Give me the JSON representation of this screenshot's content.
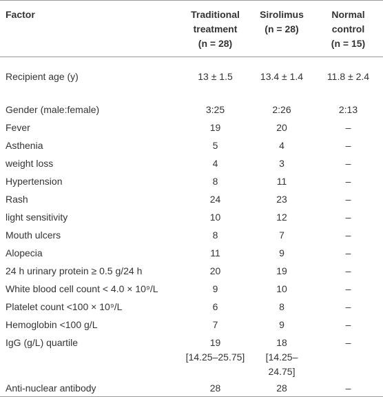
{
  "table": {
    "header": [
      "Factor",
      [
        "Traditional",
        "treatment",
        "(n = 28)"
      ],
      [
        "Sirolimus",
        "(n = 28)"
      ],
      [
        "Normal",
        "control",
        "(n = 15)"
      ]
    ],
    "rows": [
      [
        "Recipient age (y)",
        "13 ± 1.5",
        "13.4 ± 1.4",
        "11.8 ± 2.4"
      ],
      [
        "Gender (male:female)",
        "3:25",
        "2:26",
        "2:13"
      ],
      [
        "Fever",
        "19",
        "20",
        "–"
      ],
      [
        "Asthenia",
        "5",
        "4",
        "–"
      ],
      [
        "weight loss",
        "4",
        "3",
        "–"
      ],
      [
        "Hypertension",
        "8",
        "11",
        "–"
      ],
      [
        "Rash",
        "24",
        "23",
        "–"
      ],
      [
        "light sensitivity",
        "10",
        "12",
        "–"
      ],
      [
        "Mouth ulcers",
        "8",
        "7",
        "–"
      ],
      [
        "Alopecia",
        "11",
        "9",
        "–"
      ],
      [
        "24 h urinary protein ≥ 0.5 g/24 h",
        "20",
        "19",
        "–"
      ],
      [
        "White blood cell count < 4.0 × 10⁹/L",
        "9",
        "10",
        "–"
      ],
      [
        "Platelet count <100 × 10⁹/L",
        "6",
        "8",
        "–"
      ],
      [
        "Hemoglobin <100 g/L",
        "7",
        "9",
        "–"
      ],
      [
        "IgG (g/L) quartile",
        [
          "19",
          "[14.25–25.75]"
        ],
        [
          "18",
          "[14.25–24.75]"
        ],
        "–"
      ],
      [
        "Anti-nuclear antibody",
        "28",
        "28",
        "–"
      ]
    ]
  }
}
